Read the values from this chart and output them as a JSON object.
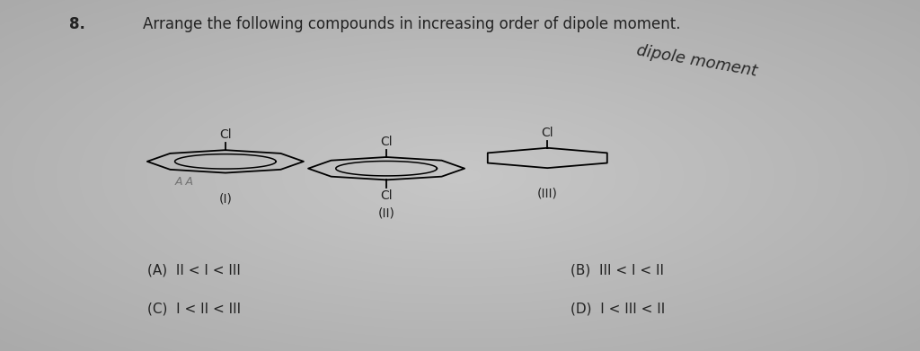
{
  "title": "8.",
  "question": "Arrange the following compounds in increasing order of dipole moment.",
  "bg_color_center": "#c8ccd0",
  "bg_color_edge": "#a0a4a8",
  "text_color": "#1a1a1a",
  "dark_text": "#222222",
  "options": {
    "A": "(A)  II < I < III",
    "B": "(B)  III < I < II",
    "C": "(C)  I < II < III",
    "D": "(D)  I < III < II"
  },
  "handwritten": "dipole moment",
  "compound_labels": [
    "(I)",
    "(II)",
    "(III)"
  ],
  "cl_label": "Cl",
  "c1x": 0.245,
  "c1y": 0.54,
  "c2x": 0.42,
  "c2y": 0.52,
  "c3x": 0.595,
  "c3y": 0.55,
  "ring_r": 0.085,
  "ring_inner_r": 0.055
}
